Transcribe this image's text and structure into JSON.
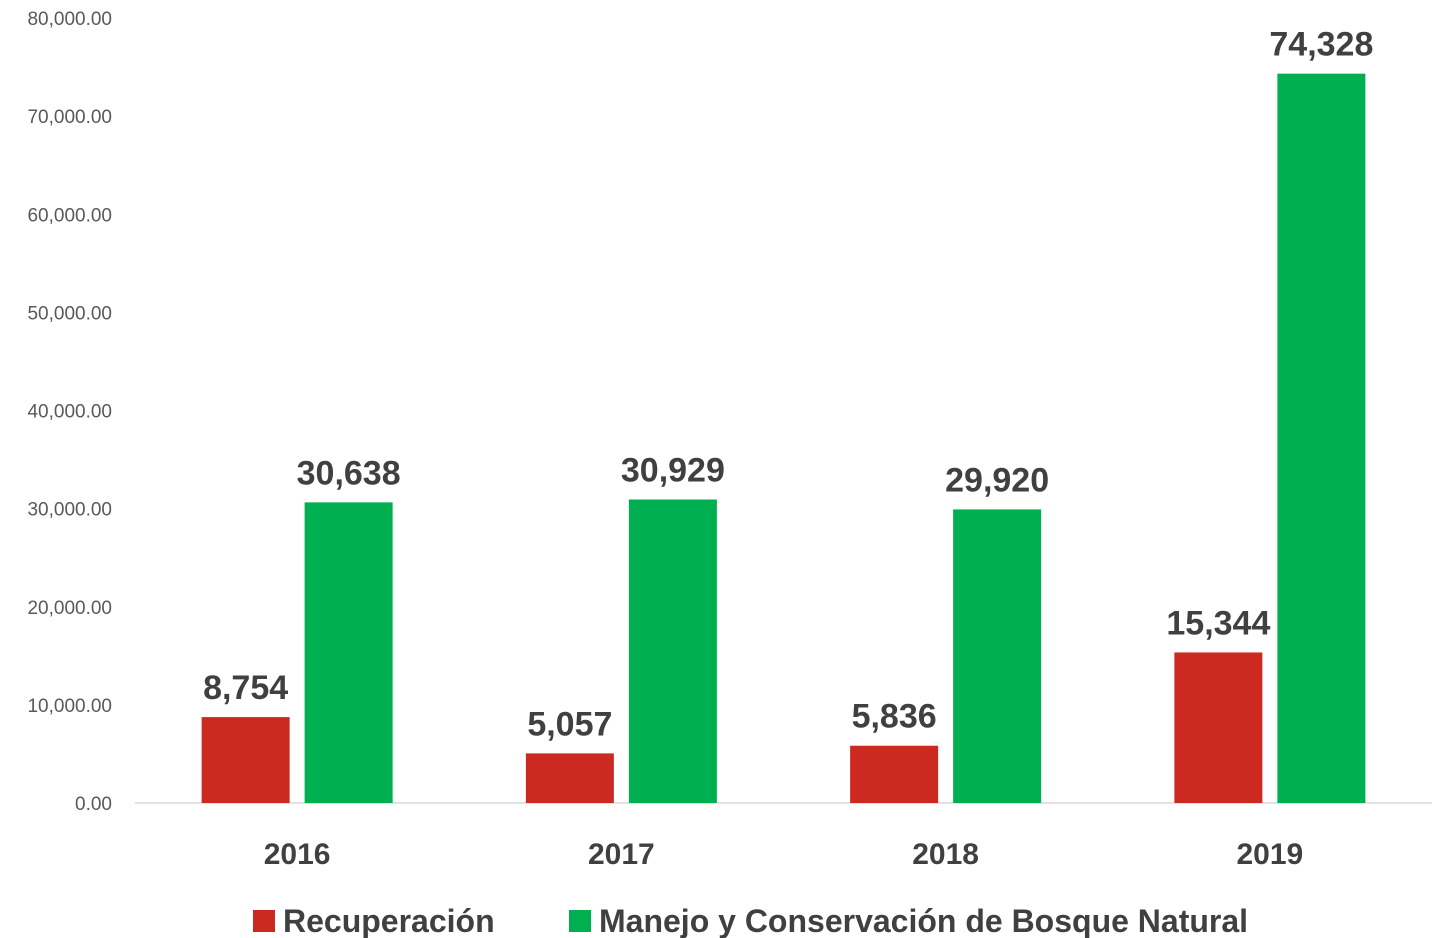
{
  "chart_data": {
    "type": "bar",
    "title": "",
    "xlabel": "",
    "ylabel": "",
    "categories": [
      "2016",
      "2017",
      "2018",
      "2019"
    ],
    "series": [
      {
        "name": "Recuperación",
        "color": "#cc2a21",
        "values": [
          8754,
          5057,
          5836,
          15344
        ],
        "labels": [
          "8,754",
          "5,057",
          "5,836",
          "15,344"
        ]
      },
      {
        "name": "Manejo y Conservación de Bosque Natural",
        "color": "#00b050",
        "values": [
          30638,
          30929,
          29920,
          74328
        ],
        "labels": [
          "30,638",
          "30,929",
          "29,920",
          "74,328"
        ]
      }
    ],
    "ylim": [
      0,
      80000
    ],
    "yticks": [
      0,
      10000,
      20000,
      30000,
      40000,
      50000,
      60000,
      70000,
      80000
    ],
    "ytick_labels": [
      "0.00",
      "10,000.00",
      "20,000.00",
      "30,000.00",
      "40,000.00",
      "50,000.00",
      "60,000.00",
      "70,000.00",
      "80,000.00"
    ],
    "grid": false,
    "legend": "bottom",
    "axis_color": "#d9d9d9"
  }
}
